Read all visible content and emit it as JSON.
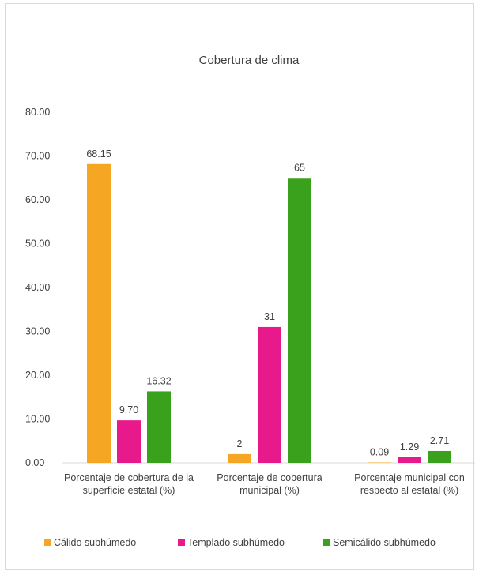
{
  "chart_data": {
    "type": "bar",
    "title": "Cobertura de clima",
    "categories": [
      [
        "Porcentaje de cobertura de la",
        "superficie estatal (%)"
      ],
      [
        "Porcentaje de cobertura",
        "municipal (%)"
      ],
      [
        "Porcentaje municipal con",
        "respecto al  estatal (%)"
      ]
    ],
    "series": [
      {
        "name": "Cálido subhúmedo",
        "color": "#f5a623",
        "values": [
          68.15,
          2,
          0.09
        ],
        "labels": [
          "68.15",
          "2",
          "0.09"
        ]
      },
      {
        "name": "Templado subhúmedo",
        "color": "#e8198b",
        "values": [
          9.7,
          31,
          1.29
        ],
        "labels": [
          "9.70",
          "31",
          "1.29"
        ]
      },
      {
        "name": "Semicálido subhúmedo",
        "color": "#3aa11d",
        "values": [
          16.32,
          65,
          2.71
        ],
        "labels": [
          "16.32",
          "65",
          "2.71"
        ]
      }
    ],
    "yticks": [
      "0.00",
      "10.00",
      "20.00",
      "30.00",
      "40.00",
      "50.00",
      "60.00",
      "70.00",
      "80.00"
    ],
    "ylim": [
      0,
      80
    ],
    "grid": false,
    "legend": "bottom"
  }
}
